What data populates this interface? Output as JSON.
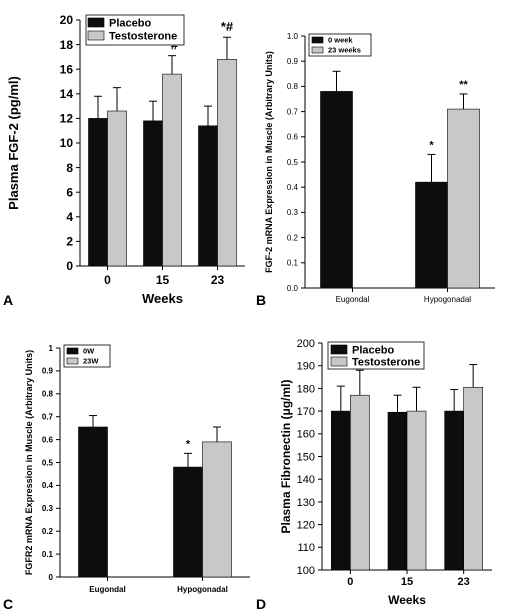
{
  "colors": {
    "dark": "#0d0d0d",
    "light": "#c8c8c8",
    "axis": "#000000"
  },
  "chart_data": [
    {
      "panel": "A",
      "type": "bar",
      "xlabel": "Weeks",
      "ylabel": "Plasma FGF-2 (pg/ml)",
      "categories": [
        "0",
        "15",
        "23"
      ],
      "ylim": [
        0,
        20
      ],
      "yticks": [
        "0",
        "2",
        "4",
        "6",
        "8",
        "10",
        "12",
        "14",
        "16",
        "18",
        "20"
      ],
      "series": [
        {
          "name": "Placebo",
          "color": "dark",
          "values": [
            12.0,
            11.8,
            11.4
          ],
          "errors": [
            1.8,
            1.6,
            1.6
          ]
        },
        {
          "name": "Testosterone",
          "color": "light",
          "values": [
            12.6,
            15.6,
            16.8
          ],
          "errors": [
            1.9,
            1.5,
            1.8
          ]
        }
      ],
      "annotations": [
        {
          "text": "*#",
          "series": 1,
          "category": 1
        },
        {
          "text": "*#",
          "series": 1,
          "category": 2
        }
      ],
      "legend": "top-left",
      "grid": false
    },
    {
      "panel": "B",
      "type": "bar",
      "xlabel": "",
      "ylabel": "FGF-2 mRNA Expression in Muscle (Arbitrary Units)",
      "categories": [
        "Eugondal",
        "Hypogonadal"
      ],
      "ylim": [
        0,
        1.0
      ],
      "yticks": [
        "0.0",
        "0.1",
        "0.2",
        "0.3",
        "0.4",
        "0.5",
        "0.6",
        "0.7",
        "0.8",
        "0.9",
        "1.0"
      ],
      "series": [
        {
          "name": "0 week",
          "color": "dark",
          "values": [
            0.78,
            0.42
          ],
          "errors": [
            0.08,
            0.11
          ]
        },
        {
          "name": "23 weeks",
          "color": "light",
          "values": [
            null,
            0.71
          ],
          "errors": [
            null,
            0.06
          ]
        }
      ],
      "annotations": [
        {
          "text": "*",
          "series": 0,
          "category": 1
        },
        {
          "text": "**",
          "series": 1,
          "category": 1
        }
      ],
      "legend": "top-left",
      "grid": false
    },
    {
      "panel": "C",
      "type": "bar",
      "xlabel": "",
      "ylabel": "FGFR2 mRNA Expression in Muscle (Arbitrary Units)",
      "categories": [
        "Eugondal",
        "Hypogonadal"
      ],
      "ylim": [
        0,
        1.0
      ],
      "yticks": [
        "0",
        "0.1",
        "0.2",
        "0.3",
        "0.4",
        "0.5",
        "0.6",
        "0.7",
        "0.8",
        "0.9",
        "1"
      ],
      "series": [
        {
          "name": "0W",
          "color": "dark",
          "values": [
            0.655,
            0.48
          ],
          "errors": [
            0.05,
            0.06
          ]
        },
        {
          "name": "23W",
          "color": "light",
          "values": [
            null,
            0.59
          ],
          "errors": [
            null,
            0.065
          ]
        }
      ],
      "annotations": [
        {
          "text": "*",
          "series": 0,
          "category": 1
        }
      ],
      "legend": "top-left",
      "grid": false
    },
    {
      "panel": "D",
      "type": "bar",
      "xlabel": "Weeks",
      "ylabel": "Plasma Fibronectin (μg/ml)",
      "categories": [
        "0",
        "15",
        "23"
      ],
      "ylim": [
        100,
        200
      ],
      "yticks": [
        "100",
        "110",
        "120",
        "130",
        "140",
        "150",
        "160",
        "170",
        "180",
        "190",
        "200"
      ],
      "series": [
        {
          "name": "Placebo",
          "color": "dark",
          "values": [
            170.0,
            169.5,
            170.0
          ],
          "errors": [
            11,
            7.5,
            9.5
          ]
        },
        {
          "name": "Testosterone",
          "color": "light",
          "values": [
            177.0,
            170.0,
            180.5
          ],
          "errors": [
            11,
            10.5,
            10
          ]
        }
      ],
      "annotations": [],
      "legend": "top-left",
      "grid": false
    }
  ]
}
